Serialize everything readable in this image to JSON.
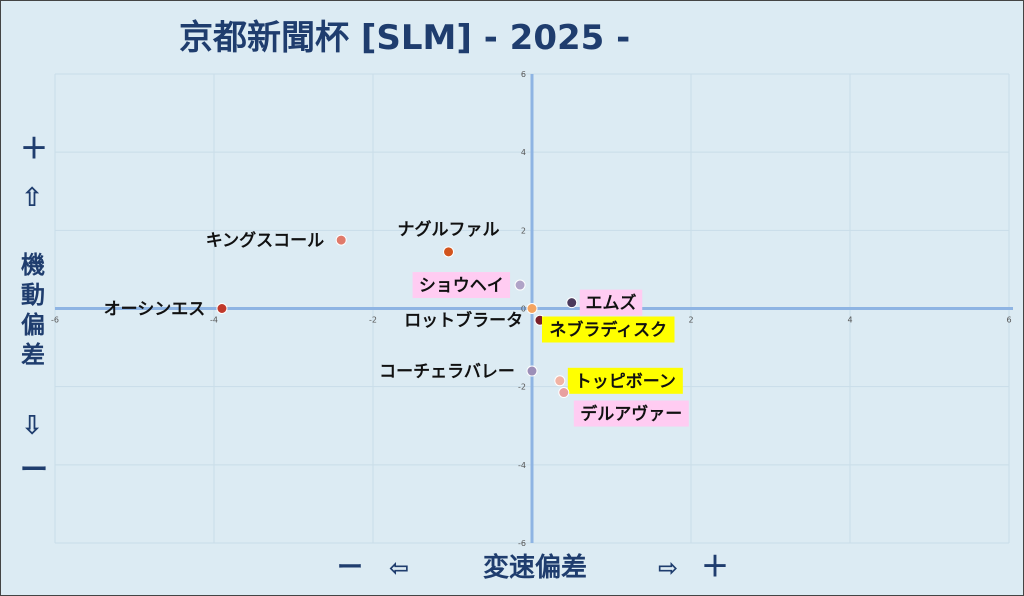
{
  "title": "京都新聞杯 [SLM]  - 2025 -",
  "left_axis": {
    "plus": "＋",
    "up_arrow": "⇧",
    "label_chars": [
      "機",
      "動",
      "偏",
      "差"
    ],
    "down_arrow": "⇩",
    "minus": "ー"
  },
  "bottom_axis": {
    "minus": "ー",
    "left_arrow": "⇦",
    "label": "変速偏差",
    "right_arrow": "⇨",
    "plus": "＋"
  },
  "colors": {
    "background": "#dcebf3",
    "axis": "#8eb4e3",
    "grid": "#c9dde8",
    "title": "#1f3d6e",
    "highlight_yellow": "#ffff00",
    "highlight_pink": "#ffccf2"
  },
  "chart_data": {
    "type": "scatter",
    "title": "京都新聞杯 [SLM]  - 2025 -",
    "xlabel": "変速偏差",
    "ylabel": "機動偏差",
    "xlim": [
      -6,
      6
    ],
    "ylim": [
      -6,
      6
    ],
    "x_ticks": [
      -6,
      -4,
      -2,
      0,
      2,
      4,
      6
    ],
    "y_ticks": [
      -6,
      -4,
      -2,
      0,
      2,
      4,
      6
    ],
    "grid": true,
    "points": [
      {
        "name": "キングスコール",
        "x": -2.4,
        "y": 1.75,
        "color": "#e07a6a",
        "highlight": "none",
        "label_side": "left"
      },
      {
        "name": "ナグルファル",
        "x": -1.05,
        "y": 1.45,
        "color": "#d2541d",
        "highlight": "none",
        "label_side": "above"
      },
      {
        "name": "ショウヘイ",
        "x": -0.15,
        "y": 0.6,
        "color": "#b0a3c7",
        "highlight": "pink",
        "label_side": "left"
      },
      {
        "name": "オーシンエス",
        "x": -3.9,
        "y": 0.0,
        "color": "#c0392b",
        "highlight": "none",
        "label_side": "left"
      },
      {
        "name": "エムズ",
        "x": 0.5,
        "y": 0.15,
        "color": "#4a3a5c",
        "highlight": "pink",
        "label_side": "right"
      },
      {
        "name": "ロットブラータ",
        "x": 0.1,
        "y": -0.3,
        "color": "#7a1f2b",
        "highlight": "none",
        "label_side": "left"
      },
      {
        "name": "ネブラディスク",
        "x": 0.0,
        "y": 0.0,
        "color": "#f4a460",
        "highlight": "yellow",
        "label_side": "below-right"
      },
      {
        "name": "コーチェラバレー",
        "x": 0.0,
        "y": -1.6,
        "color": "#9c8fb8",
        "highlight": "none",
        "label_side": "left"
      },
      {
        "name": "トッピボーン",
        "x": 0.35,
        "y": -1.85,
        "color": "#f2b3a3",
        "highlight": "yellow",
        "label_side": "right"
      },
      {
        "name": "デルアヴァー",
        "x": 0.4,
        "y": -2.15,
        "color": "#e8a0a0",
        "highlight": "pink",
        "label_side": "below-right"
      }
    ]
  }
}
